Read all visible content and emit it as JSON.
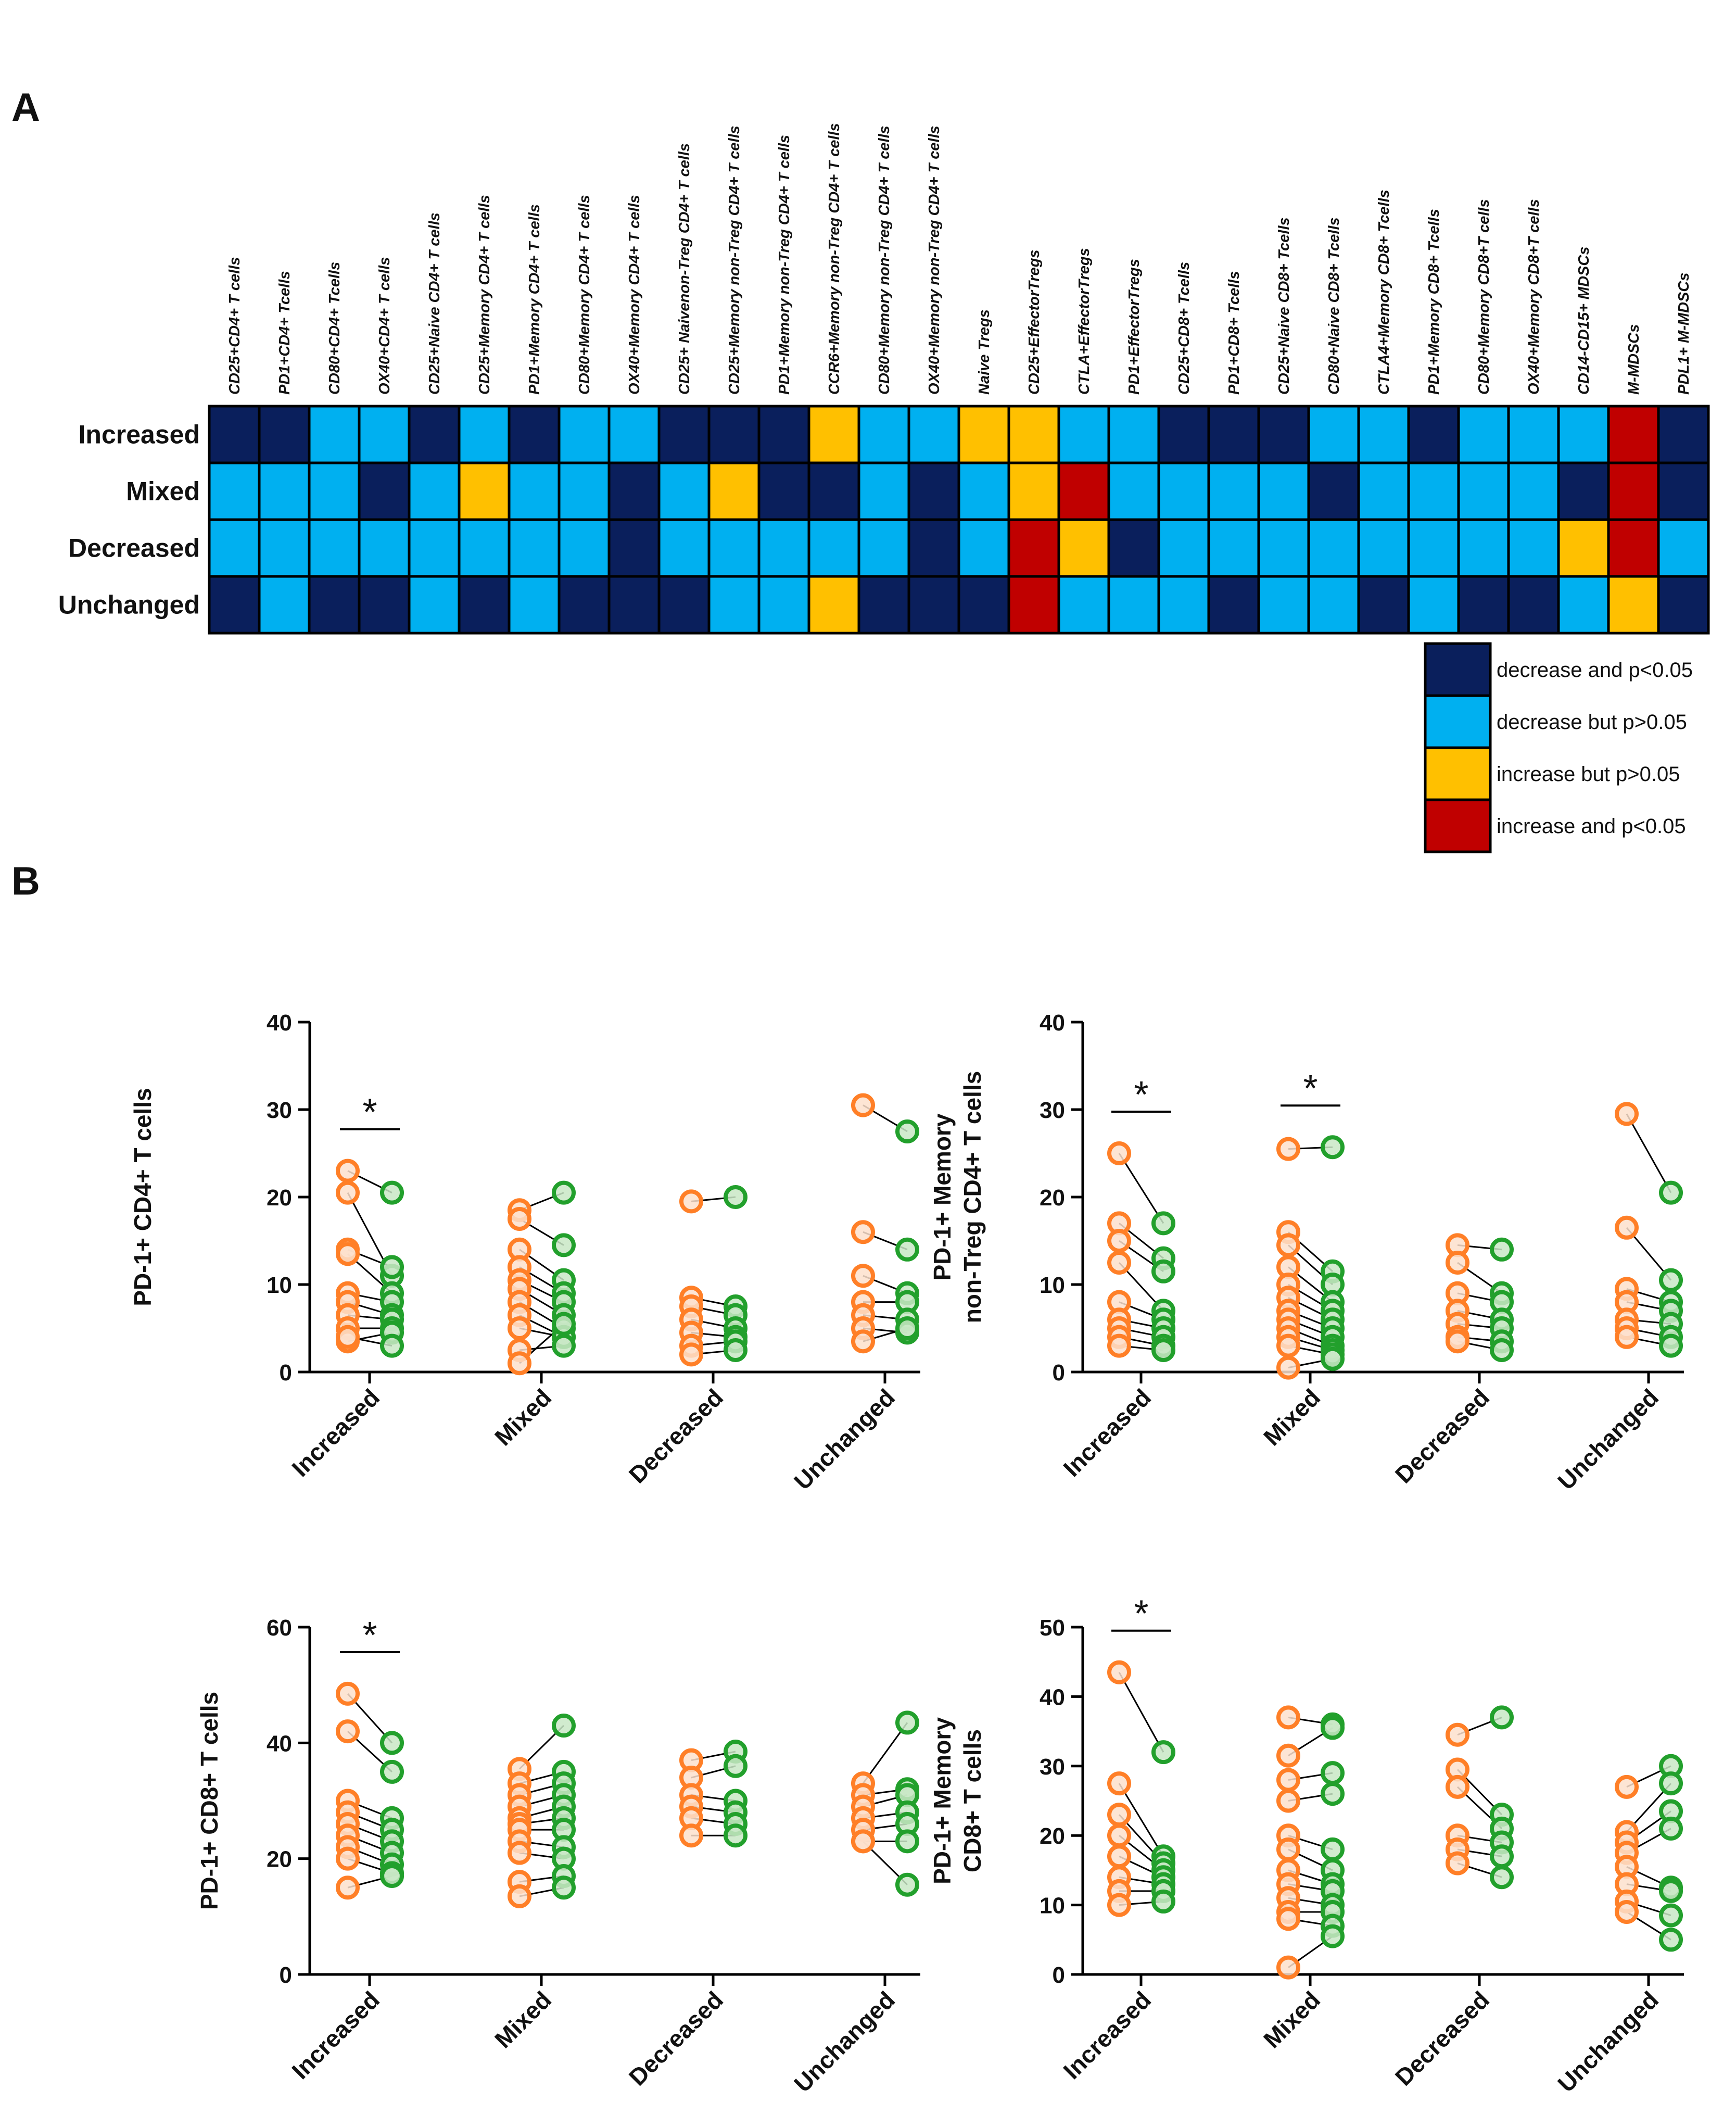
{
  "colors": {
    "dark_blue": "#0a1f5c",
    "light_blue": "#00b0f0",
    "yellow": "#ffc000",
    "red": "#c00000",
    "orange": "#ff7f27",
    "green": "#22a02c"
  },
  "panel_a": {
    "letter": "A",
    "columns": [
      "CD25+CD4+ T cells",
      "PD1+CD4+ Tcells",
      "CD80+CD4+ Tcells",
      "OX40+CD4+ T cells",
      "CD25+Naive CD4+ T cells",
      "CD25+Memory CD4+ T cells",
      "PD1+Memory CD4+ T cells",
      "CD80+Memory CD4+ T cells",
      "OX40+Memory CD4+ T cells",
      "CD25+ Naivenon-Treg CD4+ T cells",
      "CD25+Memory non-Treg CD4+ T cells",
      "PD1+Memory non-Treg CD4+ T cells",
      "CCR6+Memory non-Treg CD4+ T cells",
      "CD80+Memory non-Treg CD4+ T cells",
      "OX40+Memory non-Treg CD4+ T cells",
      "Naive Tregs",
      "CD25+EffectorTregs",
      "CTLA+EffectorTregs",
      "PD1+EffectorTregs",
      "CD25+CD8+ Tcells",
      "PD1+CD8+ Tcells",
      "CD25+Naive CD8+ Tcells",
      "CD80+Naive CD8+ Tcells",
      "CTLA4+Memory CD8+ Tcells",
      "PD1+Memory CD8+ Tcells",
      "CD80+Memory CD8+T cells",
      "OX40+Memory CD8+T cells",
      "CD14-CD15+ MDSCs",
      "M-MDSCs",
      "PDL1+ M-MDSCs"
    ],
    "rows": [
      "Increased",
      "Mixed",
      "Decreased",
      "Unchanged"
    ],
    "cells": [
      [
        "D",
        "D",
        "L",
        "L",
        "D",
        "L",
        "D",
        "L",
        "L",
        "D",
        "D",
        "D",
        "Y",
        "L",
        "L",
        "Y",
        "Y",
        "L",
        "L",
        "D",
        "D",
        "D",
        "L",
        "L",
        "D",
        "L",
        "L",
        "L",
        "R",
        "D"
      ],
      [
        "L",
        "L",
        "L",
        "D",
        "L",
        "Y",
        "L",
        "L",
        "D",
        "L",
        "Y",
        "D",
        "D",
        "L",
        "D",
        "L",
        "Y",
        "R",
        "L",
        "L",
        "L",
        "L",
        "D",
        "L",
        "L",
        "L",
        "L",
        "D",
        "R",
        "D"
      ],
      [
        "L",
        "L",
        "L",
        "L",
        "L",
        "L",
        "L",
        "L",
        "D",
        "L",
        "L",
        "L",
        "L",
        "L",
        "D",
        "L",
        "R",
        "Y",
        "D",
        "L",
        "L",
        "L",
        "L",
        "L",
        "L",
        "L",
        "L",
        "Y",
        "R",
        "L"
      ],
      [
        "D",
        "L",
        "D",
        "D",
        "L",
        "D",
        "L",
        "D",
        "D",
        "D",
        "L",
        "L",
        "Y",
        "D",
        "D",
        "D",
        "R",
        "L",
        "L",
        "L",
        "D",
        "L",
        "L",
        "D",
        "L",
        "D",
        "D",
        "L",
        "Y",
        "D"
      ]
    ],
    "legend": [
      {
        "key": "D",
        "label": "decrease and p<0.05"
      },
      {
        "key": "L",
        "label": "decrease but  p>0.05"
      },
      {
        "key": "Y",
        "label": "increase  but   p>0.05"
      },
      {
        "key": "R",
        "label": "increase and  p<0.05"
      }
    ]
  },
  "panel_b": {
    "letter": "B"
  },
  "chart_data": [
    {
      "type": "scatter",
      "ylabel": [
        "PD-1+ CD4+ T cells"
      ],
      "ylim": [
        0,
        40
      ],
      "yticks": [
        0,
        10,
        20,
        30,
        40
      ],
      "categories": [
        "Increased",
        "Mixed",
        "Decreased",
        "Unchanged"
      ],
      "significant": [
        "Increased"
      ],
      "groups": [
        {
          "pairs": [
            [
              23,
              20.5
            ],
            [
              20.5,
              11
            ],
            [
              14,
              12
            ],
            [
              13.5,
              9
            ],
            [
              9,
              8
            ],
            [
              8,
              6.5
            ],
            [
              6.5,
              6
            ],
            [
              5,
              5
            ],
            [
              3.5,
              4.5
            ],
            [
              4,
              3
            ]
          ]
        },
        {
          "pairs": [
            [
              18.5,
              20.5
            ],
            [
              17.5,
              14.5
            ],
            [
              14,
              10.5
            ],
            [
              12,
              9
            ],
            [
              10.5,
              8
            ],
            [
              9.5,
              6.5
            ],
            [
              8,
              5
            ],
            [
              6.5,
              4
            ],
            [
              5,
              4
            ],
            [
              2.5,
              3
            ],
            [
              1,
              5.5
            ]
          ]
        },
        {
          "pairs": [
            [
              19.5,
              20
            ],
            [
              8.5,
              7.5
            ],
            [
              7.5,
              6.5
            ],
            [
              6,
              5
            ],
            [
              4.5,
              4
            ],
            [
              3,
              3.5
            ],
            [
              2,
              2.5
            ]
          ]
        },
        {
          "pairs": [
            [
              30.5,
              27.5
            ],
            [
              16,
              14
            ],
            [
              11,
              9
            ],
            [
              8,
              8
            ],
            [
              6.5,
              6
            ],
            [
              5,
              4.5
            ],
            [
              3.5,
              5
            ]
          ]
        }
      ]
    },
    {
      "type": "scatter",
      "ylabel": [
        "PD-1+ Memory",
        "non-Treg CD4+ T cells"
      ],
      "ylim": [
        0,
        40
      ],
      "yticks": [
        0,
        10,
        20,
        30,
        40
      ],
      "categories": [
        "Increased",
        "Mixed",
        "Decreased",
        "Unchanged"
      ],
      "significant": [
        "Increased",
        "Mixed"
      ],
      "groups": [
        {
          "pairs": [
            [
              25,
              17
            ],
            [
              17,
              13
            ],
            [
              15,
              11.5
            ],
            [
              12.5,
              7
            ],
            [
              8,
              6
            ],
            [
              6,
              5
            ],
            [
              5,
              4
            ],
            [
              4,
              3
            ],
            [
              3,
              2.5
            ]
          ]
        },
        {
          "pairs": [
            [
              25.5,
              25.7
            ],
            [
              16,
              11.5
            ],
            [
              14.5,
              10
            ],
            [
              12,
              8
            ],
            [
              10,
              7
            ],
            [
              8.5,
              6
            ],
            [
              7,
              5
            ],
            [
              6,
              4
            ],
            [
              5,
              3
            ],
            [
              4,
              2.5
            ],
            [
              3,
              2
            ],
            [
              0.5,
              1.5
            ]
          ]
        },
        {
          "pairs": [
            [
              14.5,
              14
            ],
            [
              12.5,
              9
            ],
            [
              9,
              8
            ],
            [
              7,
              6
            ],
            [
              5.5,
              5
            ],
            [
              4,
              3.5
            ],
            [
              3.5,
              2.5
            ]
          ]
        },
        {
          "pairs": [
            [
              29.5,
              20.5
            ],
            [
              16.5,
              10.5
            ],
            [
              9.5,
              8
            ],
            [
              8,
              7
            ],
            [
              6,
              5.5
            ],
            [
              5,
              4
            ],
            [
              4,
              3
            ]
          ]
        }
      ]
    },
    {
      "type": "scatter",
      "ylabel": [
        "PD-1+ CD8+ T cells"
      ],
      "ylim": [
        0,
        60
      ],
      "yticks": [
        0,
        20,
        40,
        60
      ],
      "categories": [
        "Increased",
        "Mixed",
        "Decreased",
        "Unchanged"
      ],
      "significant": [
        "Increased"
      ],
      "groups": [
        {
          "pairs": [
            [
              48.5,
              40
            ],
            [
              42,
              35
            ],
            [
              30,
              27
            ],
            [
              28,
              25
            ],
            [
              26,
              23
            ],
            [
              24,
              21
            ],
            [
              22,
              19
            ],
            [
              20,
              17.5
            ],
            [
              15,
              17
            ]
          ]
        },
        {
          "pairs": [
            [
              35.5,
              43
            ],
            [
              33,
              35
            ],
            [
              31,
              33
            ],
            [
              29,
              31
            ],
            [
              27,
              29
            ],
            [
              26,
              27
            ],
            [
              25,
              25
            ],
            [
              23,
              22
            ],
            [
              21,
              20
            ],
            [
              16,
              17
            ],
            [
              13.5,
              15
            ]
          ]
        },
        {
          "pairs": [
            [
              37,
              38.5
            ],
            [
              34,
              36
            ],
            [
              31,
              30
            ],
            [
              29,
              28
            ],
            [
              27,
              26
            ],
            [
              24,
              24
            ]
          ]
        },
        {
          "pairs": [
            [
              33,
              43.5
            ],
            [
              31,
              32
            ],
            [
              29,
              31
            ],
            [
              27,
              28
            ],
            [
              25,
              26
            ],
            [
              23,
              23
            ],
            [
              23,
              15.5
            ]
          ]
        }
      ]
    },
    {
      "type": "scatter",
      "ylabel": [
        "PD-1+ Memory",
        "CD8+ T cells"
      ],
      "ylim": [
        0,
        50
      ],
      "yticks": [
        0,
        10,
        20,
        30,
        40,
        50
      ],
      "categories": [
        "Increased",
        "Mixed",
        "Decreased",
        "Unchanged"
      ],
      "significant": [
        "Increased"
      ],
      "groups": [
        {
          "pairs": [
            [
              43.5,
              32
            ],
            [
              27.5,
              17
            ],
            [
              23,
              16
            ],
            [
              20,
              15
            ],
            [
              17,
              14
            ],
            [
              14,
              13
            ],
            [
              12,
              12
            ],
            [
              10,
              10.5
            ]
          ]
        },
        {
          "pairs": [
            [
              37,
              36
            ],
            [
              31.5,
              35.5
            ],
            [
              28,
              29
            ],
            [
              25,
              26
            ],
            [
              20,
              18
            ],
            [
              18,
              15
            ],
            [
              15,
              13
            ],
            [
              13,
              12
            ],
            [
              11,
              10
            ],
            [
              9,
              9
            ],
            [
              8,
              7
            ],
            [
              1,
              5.5
            ]
          ]
        },
        {
          "pairs": [
            [
              34.5,
              37
            ],
            [
              29.5,
              23
            ],
            [
              27,
              21
            ],
            [
              20,
              19
            ],
            [
              18,
              17
            ],
            [
              16,
              14
            ]
          ]
        },
        {
          "pairs": [
            [
              27,
              30
            ],
            [
              20.5,
              27.5
            ],
            [
              19,
              23.5
            ],
            [
              17.5,
              21
            ],
            [
              15.5,
              12.5
            ],
            [
              13,
              12
            ],
            [
              10.5,
              8.5
            ],
            [
              9,
              5
            ]
          ]
        }
      ]
    }
  ]
}
